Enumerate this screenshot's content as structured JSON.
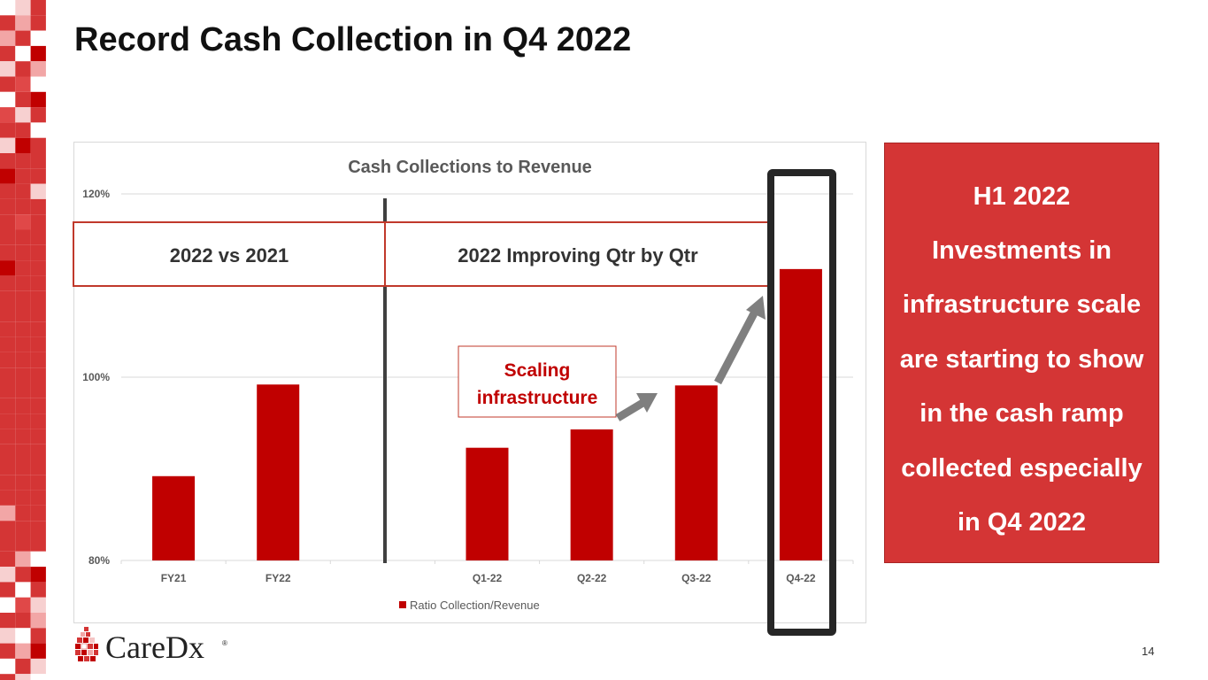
{
  "slide": {
    "title": "Record Cash Collection in Q4 2022",
    "page_number": "14"
  },
  "brand": {
    "logo_text": "CareDx",
    "logo_reg": "®",
    "accent_color": "#c00000",
    "panel_color": "#d43535"
  },
  "chart_data": {
    "type": "bar",
    "title": "Cash Collections to Revenue",
    "categories": [
      "FY21",
      "FY22",
      "",
      "Q1-22",
      "Q2-22",
      "Q3-22",
      "Q4-22"
    ],
    "series": [
      {
        "name": "Ratio Collection/Revenue",
        "values": [
          89.2,
          99.2,
          null,
          92.3,
          94.3,
          99.1,
          111.8
        ],
        "color": "#c00000"
      }
    ],
    "ylim": [
      80,
      120
    ],
    "yticks": [
      "80%",
      "100%",
      "120%"
    ],
    "ytick_values": [
      80,
      100,
      120
    ],
    "grid": true,
    "legend": "bottom",
    "xlabel": "",
    "ylabel": ""
  },
  "annotations": {
    "section_left": "2022 vs 2021",
    "section_right": "2022 Improving Qtr by Qtr",
    "callout_line1": "Scaling",
    "callout_line2": "infrastructure"
  },
  "side_panel": {
    "lines": [
      "H1 2022",
      "Investments in",
      "infrastructure  scale",
      "are starting to show",
      "in the cash ramp",
      "collected especially",
      "in Q4 2022"
    ]
  }
}
